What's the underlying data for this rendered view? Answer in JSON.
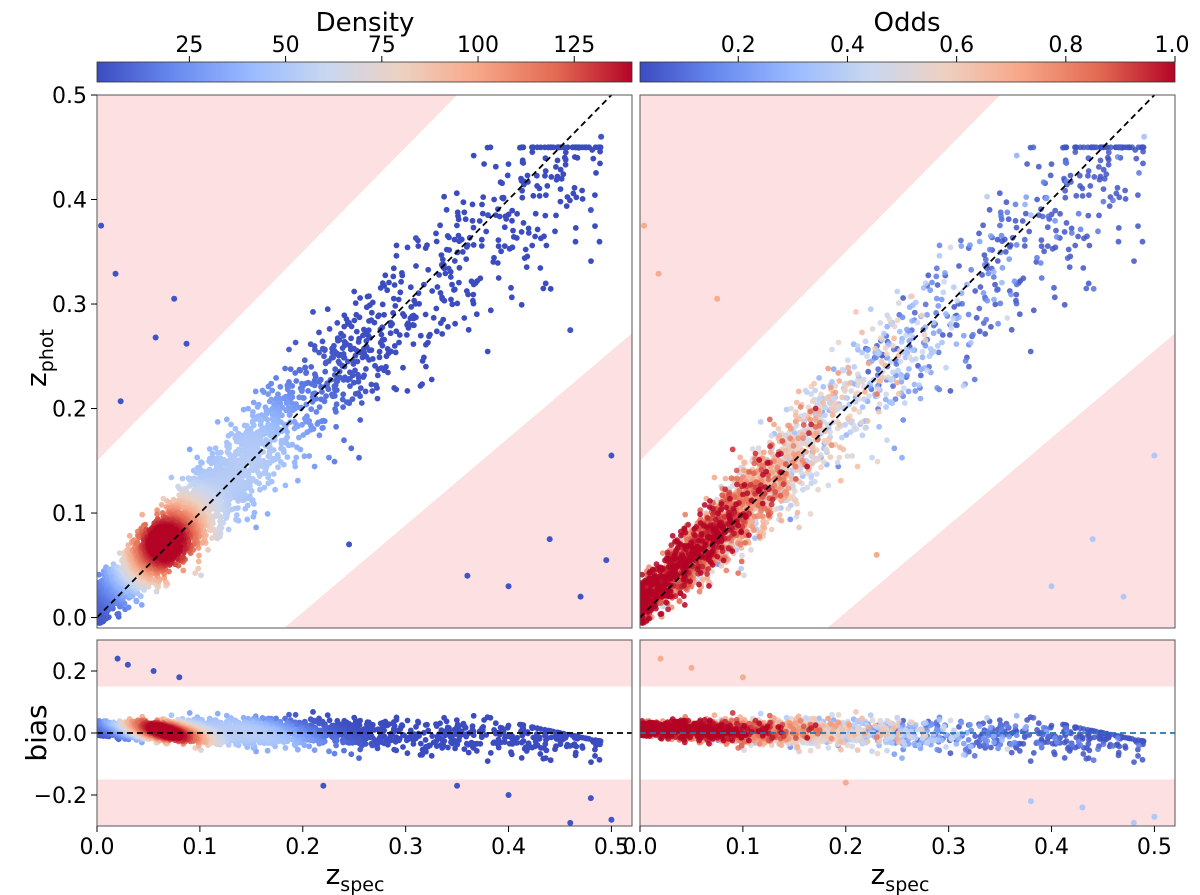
{
  "figure": {
    "colorbar_left_title": "Density",
    "colorbar_right_title": "Odds",
    "ylabel_top": "z",
    "ylabel_top_sub": "phot",
    "ylabel_bottom": "bias",
    "xlabel": "z",
    "xlabel_sub": "spec"
  },
  "colors": {
    "outlier_region": "#fde0e1",
    "colormap": [
      "#3b4cc0",
      "#6788ee",
      "#9abbff",
      "#c9d7f0",
      "#edd1c2",
      "#f7a889",
      "#e26952",
      "#b40426"
    ],
    "reference_line_left": "#000000",
    "reference_line_right": "#1f77b4"
  },
  "chart_data": [
    {
      "type": "scatter",
      "panel": "top-left",
      "xlabel": "",
      "ylabel": "z_phot",
      "xlim": [
        0,
        0.52
      ],
      "ylim": [
        -0.01,
        0.5
      ],
      "x_ticks": [],
      "y_ticks": [
        "0.0",
        "0.1",
        "0.2",
        "0.3",
        "0.4",
        "0.5"
      ],
      "color_by": "Density",
      "colorbar": {
        "title": "Density",
        "range": [
          1,
          140
        ],
        "ticks": [
          "25",
          "50",
          "75",
          "100",
          "125"
        ]
      },
      "reference_line": {
        "style": "dashed",
        "points": [
          [
            0,
            0
          ],
          [
            0.52,
            0.52
          ]
        ]
      },
      "outlier_bands": [
        {
          "points": [
            [
              0,
              0.15
            ],
            [
              0.35,
              0.5
            ],
            [
              0,
              0.5
            ]
          ]
        },
        {
          "points": [
            [
              0.182,
              -0.01
            ],
            [
              0.52,
              -0.01
            ],
            [
              0.52,
              0.272
            ]
          ]
        }
      ],
      "highlight_points": [
        [
          0.004,
          0.375
        ],
        [
          0.018,
          0.329
        ],
        [
          0.075,
          0.305
        ],
        [
          0.023,
          0.207
        ],
        [
          0.057,
          0.268
        ],
        [
          0.087,
          0.262
        ],
        [
          0.31,
          0.363
        ],
        [
          0.38,
          0.385
        ],
        [
          0.46,
          0.275
        ],
        [
          0.48,
          0.39
        ],
        [
          0.49,
          0.46
        ],
        [
          0.4,
          0.03
        ],
        [
          0.44,
          0.075
        ],
        [
          0.5,
          0.155
        ],
        [
          0.47,
          0.02
        ],
        [
          0.36,
          0.04
        ],
        [
          0.495,
          0.055
        ],
        [
          0.245,
          0.07
        ]
      ]
    },
    {
      "type": "scatter",
      "panel": "top-right",
      "xlabel": "",
      "ylabel": "",
      "xlim": [
        0,
        0.52
      ],
      "ylim": [
        -0.01,
        0.5
      ],
      "x_ticks": [],
      "y_ticks": [],
      "color_by": "Odds",
      "colorbar": {
        "title": "Odds",
        "range": [
          0.02,
          1.0
        ],
        "ticks": [
          "0.2",
          "0.4",
          "0.6",
          "0.8",
          "1.0"
        ]
      },
      "reference_line": {
        "style": "dashed",
        "points": [
          [
            0,
            0
          ],
          [
            0.52,
            0.52
          ]
        ]
      },
      "outlier_bands": [
        {
          "points": [
            [
              0,
              0.15
            ],
            [
              0.35,
              0.5
            ],
            [
              0,
              0.5
            ]
          ]
        },
        {
          "points": [
            [
              0.182,
              -0.01
            ],
            [
              0.52,
              -0.01
            ],
            [
              0.52,
              0.272
            ]
          ]
        }
      ],
      "highlight_points": [
        [
          0.004,
          0.375
        ],
        [
          0.018,
          0.329
        ],
        [
          0.075,
          0.305
        ],
        [
          0.4,
          0.03
        ],
        [
          0.44,
          0.075
        ],
        [
          0.47,
          0.02
        ],
        [
          0.5,
          0.155
        ],
        [
          0.49,
          0.46
        ],
        [
          0.38,
          0.385
        ],
        [
          0.23,
          0.06
        ]
      ]
    },
    {
      "type": "scatter",
      "panel": "bottom-left",
      "xlabel": "z_spec",
      "ylabel": "bias",
      "xlim": [
        0,
        0.52
      ],
      "ylim": [
        -0.3,
        0.3
      ],
      "x_ticks": [
        "0.0",
        "0.1",
        "0.2",
        "0.3",
        "0.4",
        "0.5"
      ],
      "y_ticks": [
        "−0.2",
        "0.0",
        "0.2"
      ],
      "color_by": "Density",
      "reference_line": {
        "style": "dashed",
        "points": [
          [
            0,
            0
          ],
          [
            0.52,
            0
          ]
        ]
      },
      "outlier_bands": [
        {
          "points": [
            [
              0,
              0.15
            ],
            [
              0.52,
              0.15
            ],
            [
              0.52,
              0.3
            ],
            [
              0,
              0.3
            ]
          ]
        },
        {
          "points": [
            [
              0,
              -0.3
            ],
            [
              0.52,
              -0.3
            ],
            [
              0.52,
              -0.15
            ],
            [
              0,
              -0.15
            ]
          ]
        }
      ],
      "highlight_points": [
        [
          0.02,
          0.24
        ],
        [
          0.03,
          0.22
        ],
        [
          0.055,
          0.2
        ],
        [
          0.08,
          0.18
        ],
        [
          0.22,
          -0.17
        ],
        [
          0.35,
          -0.17
        ],
        [
          0.4,
          -0.2
        ],
        [
          0.48,
          -0.21
        ],
        [
          0.46,
          -0.29
        ],
        [
          0.5,
          -0.28
        ]
      ]
    },
    {
      "type": "scatter",
      "panel": "bottom-right",
      "xlabel": "z_spec",
      "ylabel": "",
      "xlim": [
        0,
        0.52
      ],
      "ylim": [
        -0.3,
        0.3
      ],
      "x_ticks": [
        "0.0",
        "0.1",
        "0.2",
        "0.3",
        "0.4",
        "0.5"
      ],
      "y_ticks": [],
      "color_by": "Odds",
      "reference_line": {
        "style": "dashed",
        "points": [
          [
            0,
            0
          ],
          [
            0.52,
            0
          ]
        ]
      },
      "outlier_bands": [
        {
          "points": [
            [
              0,
              0.15
            ],
            [
              0.52,
              0.15
            ],
            [
              0.52,
              0.3
            ],
            [
              0,
              0.3
            ]
          ]
        },
        {
          "points": [
            [
              0,
              -0.3
            ],
            [
              0.52,
              -0.3
            ],
            [
              0.52,
              -0.15
            ],
            [
              0,
              -0.15
            ]
          ]
        }
      ],
      "highlight_points": [
        [
          0.02,
          0.24
        ],
        [
          0.05,
          0.21
        ],
        [
          0.1,
          0.18
        ],
        [
          0.2,
          -0.16
        ],
        [
          0.38,
          -0.22
        ],
        [
          0.43,
          -0.24
        ],
        [
          0.48,
          -0.29
        ],
        [
          0.5,
          -0.27
        ]
      ]
    }
  ]
}
